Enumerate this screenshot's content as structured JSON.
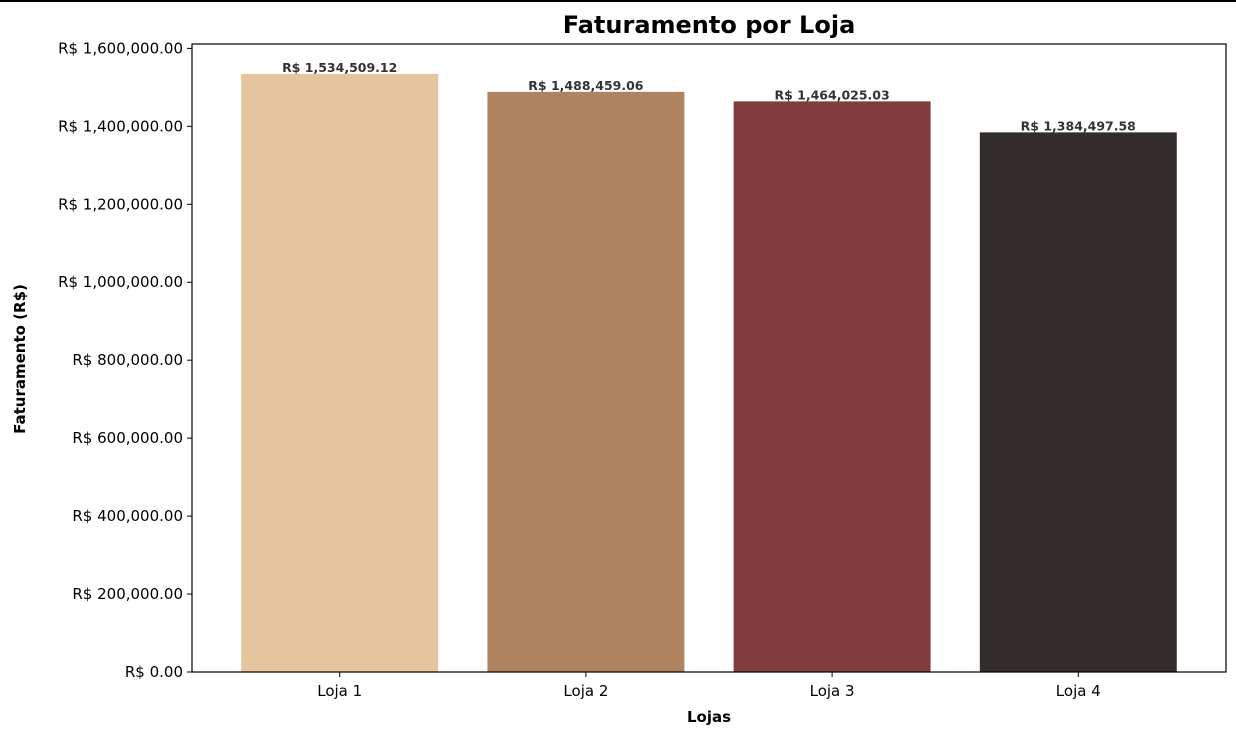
{
  "chart_data": {
    "type": "bar",
    "title": "Faturamento por Loja",
    "xlabel": "Lojas",
    "ylabel": "Faturamento (R$)",
    "categories": [
      "Loja 1",
      "Loja 2",
      "Loja 3",
      "Loja 4"
    ],
    "values": [
      1534509.12,
      1488459.06,
      1464025.03,
      1384497.58
    ],
    "value_labels": [
      "R$ 1,534,509.12",
      "R$ 1,488,459.06",
      "R$ 1,464,025.03",
      "R$ 1,384,497.58"
    ],
    "colors": [
      "#e4c59e",
      "#af8260",
      "#803d3b",
      "#322c2b"
    ],
    "ylim": [
      0,
      1611234.58
    ],
    "yticks": [
      0,
      200000,
      400000,
      600000,
      800000,
      1000000,
      1200000,
      1400000,
      1600000
    ],
    "ytick_labels": [
      "R$ 0.00",
      "R$ 200,000.00",
      "R$ 400,000.00",
      "R$ 600,000.00",
      "R$ 800,000.00",
      "R$ 1,000,000.00",
      "R$ 1,200,000.00",
      "R$ 1,400,000.00",
      "R$ 1,600,000.00"
    ],
    "grid": false,
    "legend": "none"
  }
}
